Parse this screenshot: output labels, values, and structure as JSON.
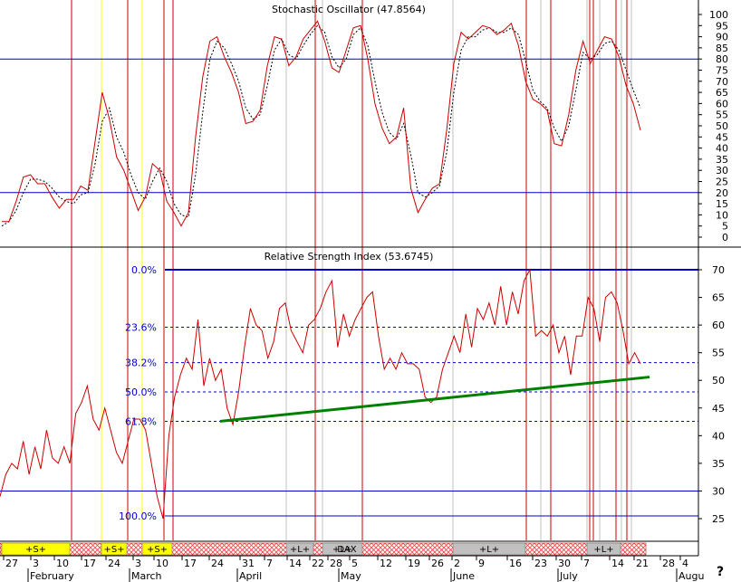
{
  "chart_data": [
    {
      "type": "line",
      "title": "Stochastic Oscillator (47.8564)",
      "ylim": [
        -5,
        108
      ],
      "yticks": [
        0,
        5,
        10,
        15,
        20,
        25,
        30,
        35,
        40,
        45,
        50,
        55,
        60,
        65,
        70,
        75,
        80,
        85,
        90,
        95,
        100
      ],
      "reference_lines": [
        80,
        20
      ],
      "series": [
        {
          "color": "#cc0000",
          "style": "solid",
          "values": [
            7,
            7,
            16,
            27,
            28,
            24,
            24,
            18,
            13,
            17,
            17,
            23,
            21,
            43,
            65,
            53,
            36,
            30,
            21,
            12,
            18,
            33,
            30,
            16,
            11,
            5,
            11,
            45,
            72,
            88,
            90,
            81,
            74,
            65,
            51,
            52,
            57,
            77,
            90,
            89,
            77,
            81,
            89,
            93,
            97,
            88,
            76,
            74,
            84,
            94,
            95,
            80,
            60,
            49,
            42,
            45,
            58,
            22,
            11,
            17,
            22,
            24,
            48,
            78,
            92,
            89,
            92,
            95,
            94,
            91,
            93,
            96,
            86,
            70,
            62,
            60,
            57,
            42,
            41,
            55,
            75,
            88,
            78,
            84,
            90,
            89,
            81,
            68,
            60,
            48
          ]
        },
        {
          "color": "#000000",
          "style": "dotted",
          "values": [
            5,
            7,
            12,
            20,
            26,
            26,
            25,
            22,
            18,
            16,
            15,
            19,
            20,
            33,
            52,
            58,
            45,
            38,
            28,
            20,
            17,
            25,
            31,
            25,
            15,
            10,
            9,
            28,
            56,
            80,
            88,
            85,
            78,
            70,
            58,
            53,
            55,
            68,
            84,
            89,
            82,
            80,
            86,
            91,
            95,
            92,
            81,
            76,
            80,
            91,
            94,
            86,
            70,
            56,
            47,
            44,
            51,
            37,
            20,
            18,
            20,
            23,
            38,
            65,
            84,
            90,
            90,
            93,
            94,
            92,
            92,
            94,
            91,
            79,
            66,
            61,
            58,
            49,
            43,
            50,
            66,
            83,
            80,
            82,
            87,
            88,
            84,
            75,
            66,
            58
          ]
        }
      ]
    },
    {
      "type": "line",
      "title": "Relative Strength Index (53.6745)",
      "ylim": [
        21,
        71.5
      ],
      "yticks": [
        25,
        30,
        35,
        40,
        45,
        50,
        55,
        60,
        65,
        70
      ],
      "series": [
        {
          "color": "#cc0000",
          "style": "solid",
          "values": [
            29,
            33,
            35,
            34,
            39,
            33,
            38,
            34,
            41,
            36,
            35,
            38,
            35,
            44,
            46,
            49,
            43,
            41,
            45,
            41,
            37,
            35,
            39,
            43,
            43,
            41,
            35,
            29,
            25,
            40,
            47,
            51,
            54,
            52,
            61,
            49,
            54,
            50,
            52,
            45,
            42,
            48,
            56,
            63,
            60,
            59,
            54,
            57,
            63,
            64,
            59,
            57,
            55,
            60,
            61,
            63,
            66,
            68,
            56,
            62,
            58,
            61,
            63,
            65,
            66,
            58,
            52,
            54,
            52,
            55,
            53,
            53,
            52,
            47,
            46,
            47,
            52,
            55,
            58,
            55,
            62,
            56,
            63,
            61,
            64,
            60,
            67,
            60,
            66,
            62,
            68,
            70,
            58,
            59,
            58,
            60,
            55,
            58,
            51,
            58,
            58,
            65,
            63,
            57,
            65,
            66,
            64,
            59,
            53,
            55,
            53
          ]
        }
      ],
      "fibonacci_levels": [
        {
          "label": "0.0%",
          "value": 70
        },
        {
          "label": "23.6%",
          "value": 59.6
        },
        {
          "label": "38.2%",
          "value": 53.2
        },
        {
          "label": "50.0%",
          "value": 47.9
        },
        {
          "label": "61.8%",
          "value": 42.6
        },
        {
          "label": "100.0%",
          "value": 25.5
        }
      ],
      "reference_lines": [
        30
      ],
      "trendline": {
        "color": "#008000",
        "from": [
          0.315,
          42.6
        ],
        "to": [
          0.93,
          50.6
        ]
      }
    }
  ],
  "time_axis": {
    "day_ticks": [
      "27",
      "3",
      "10",
      "17",
      "24",
      "3",
      "10",
      "17",
      "24",
      "31",
      "7",
      "14",
      "22",
      "28",
      "5",
      "12",
      "19",
      "26",
      "2",
      "9",
      "16",
      "23",
      "30",
      "7",
      "14",
      "21",
      "28",
      "4"
    ],
    "months": [
      "February",
      "March",
      "April",
      "May",
      "June",
      "July",
      "Augu"
    ]
  },
  "signal_labels": [
    {
      "text": "+S+",
      "color": "#ffff00"
    },
    {
      "text": "+S+",
      "color": "#ffff00"
    },
    {
      "text": "+S+",
      "color": "#ffff00"
    },
    {
      "text": "+L+",
      "color": "#c0c0c0"
    },
    {
      "text": "+L+",
      "color": "#c0c0c0"
    },
    {
      "text": "DAX",
      "color": "#c0c0c0"
    },
    {
      "text": "+L+",
      "color": "#c0c0c0"
    },
    {
      "text": "+L+",
      "color": "#c0c0c0"
    }
  ],
  "corner_glyph": "?",
  "colors": {
    "price_line": "#cc0000",
    "signal_line": "#000000",
    "reference_line": "#0000cc",
    "event_red": "#cc0000",
    "event_yellow": "#ffff00",
    "event_gray": "#c0c0c0",
    "trendline": "#008000",
    "hatch": "#ff4040"
  }
}
